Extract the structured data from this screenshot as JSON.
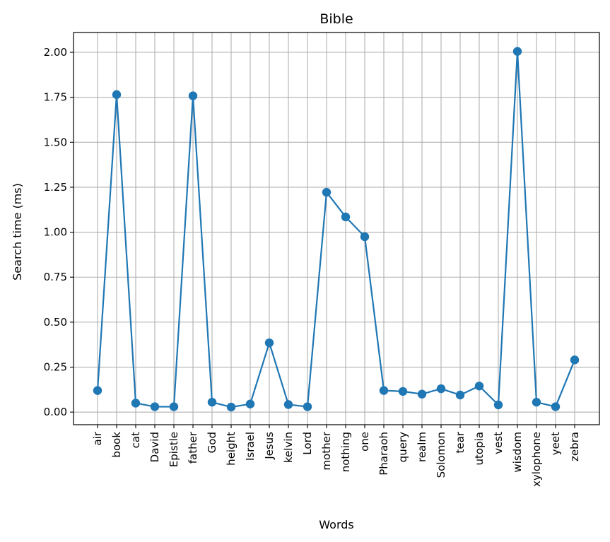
{
  "chart_data": {
    "type": "line",
    "title": "Bible",
    "xlabel": "Words",
    "ylabel": "Search time (ms)",
    "categories": [
      "air",
      "book",
      "cat",
      "David",
      "Epistle",
      "father",
      "God",
      "height",
      "Israel",
      "Jesus",
      "kelvin",
      "Lord",
      "mother",
      "nothing",
      "one",
      "Pharaoh",
      "query",
      "realm",
      "Solomon",
      "tear",
      "utopia",
      "vest",
      "wisdom",
      "xylophone",
      "yeet",
      "zebra"
    ],
    "values": [
      0.12,
      1.765,
      0.05,
      0.03,
      0.03,
      1.758,
      0.055,
      0.028,
      0.045,
      0.385,
      0.042,
      0.03,
      1.222,
      1.085,
      0.975,
      0.12,
      0.115,
      0.1,
      0.13,
      0.095,
      0.145,
      0.04,
      2.005,
      0.055,
      0.03,
      0.29
    ],
    "ylim": [
      -0.07,
      2.11
    ],
    "yticks": [
      "0.00",
      "0.25",
      "0.50",
      "0.75",
      "1.00",
      "1.25",
      "1.50",
      "1.75",
      "2.00"
    ],
    "grid": true,
    "markers": true,
    "color": "#1f77b4"
  }
}
